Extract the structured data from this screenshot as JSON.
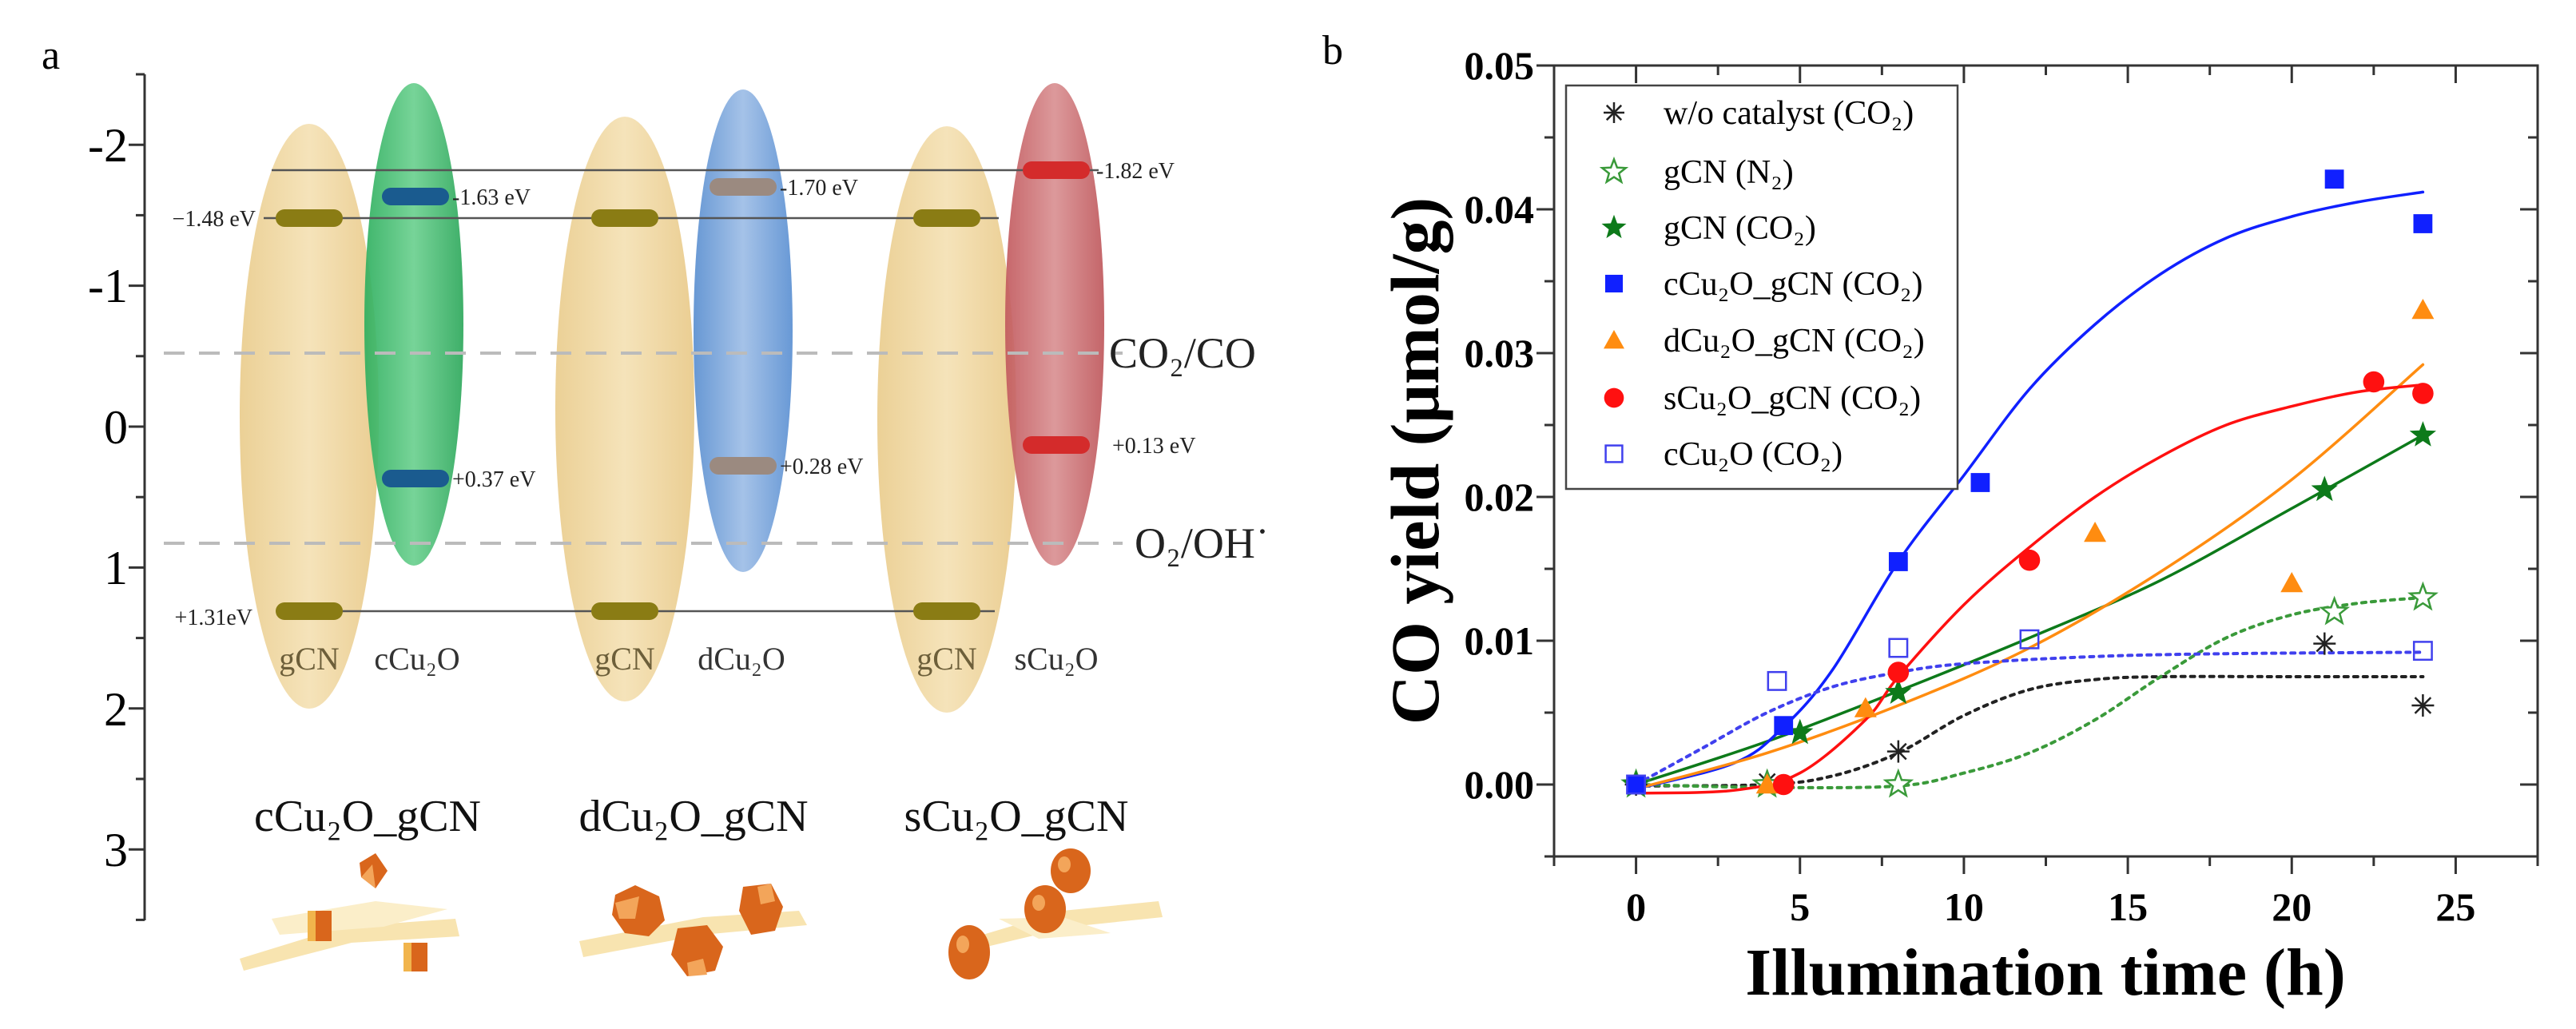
{
  "panel_a": {
    "label": "a",
    "y_ticks": [
      "-2",
      "-1",
      "0",
      "1",
      "2",
      "3"
    ],
    "levels": {
      "gcn_cb": "−1.48 eV",
      "gcn_vb": "+1.31eV",
      "ccu2o_cb": "-1.63 eV",
      "ccu2o_vb": "+0.37 eV",
      "dcu2o_cb": "-1.70 eV",
      "dcu2o_vb": "+0.28 eV",
      "scu2o_cb": "-1.82 eV",
      "scu2o_vb": "+0.13 eV"
    },
    "energies_eV": {
      "gCN": {
        "cb": -1.48,
        "vb": 1.31
      },
      "cCu2O": {
        "cb": -1.63,
        "vb": 0.37
      },
      "dCu2O": {
        "cb": -1.7,
        "vb": 0.28
      },
      "sCu2O": {
        "cb": -1.82,
        "vb": 0.13
      },
      "CO2/CO": -0.52,
      "O2/OH": 0.83
    },
    "redox": {
      "co2_co": "CO₂/CO",
      "o2_oh": "O₂/OH˙"
    },
    "materials": [
      "gCN",
      "cCu₂O",
      "gCN",
      "dCu₂O",
      "gCN",
      "sCu₂O"
    ],
    "composites": [
      "cCu₂O_gCN",
      "dCu₂O_gCN",
      "sCu₂O_gCN"
    ],
    "colors": {
      "gcn": "#efd49a",
      "ccu2o": "#3dba6c",
      "dcu2o": "#6d9fd8",
      "scu2o": "#c9676a"
    }
  },
  "panel_b": {
    "label": "b"
  },
  "chart_data": {
    "type": "scatter",
    "title": "",
    "xlabel": "Illumination time (h)",
    "ylabel": "CO yield (μmol/g)",
    "xlim": [
      -2.5,
      27.5
    ],
    "ylim": [
      -0.005,
      0.05
    ],
    "x_ticks": [
      "0",
      "5",
      "10",
      "15",
      "20",
      "25"
    ],
    "x_tick_values": [
      0,
      5,
      10,
      15,
      20,
      25
    ],
    "y_ticks": [
      "0.00",
      "0.01",
      "0.02",
      "0.03",
      "0.04",
      "0.05"
    ],
    "y_tick_values": [
      0,
      0.01,
      0.02,
      0.03,
      0.04,
      0.05
    ],
    "legend_position": "top-left",
    "series": [
      {
        "name": "w/o catalyst (CO₂)",
        "marker": "asterisk",
        "color": "#222222",
        "line": "dotted",
        "x": [
          0,
          4,
          8,
          21,
          24
        ],
        "y": [
          0,
          0.0002,
          0.0023,
          0.0098,
          0.0055
        ],
        "fit": [
          [
            0,
            -0.0001
          ],
          [
            4,
            0
          ],
          [
            6,
            0.0006
          ],
          [
            8,
            0.0022
          ],
          [
            10,
            0.0048
          ],
          [
            12,
            0.0066
          ],
          [
            14,
            0.0073
          ],
          [
            16,
            0.0075
          ],
          [
            20,
            0.0075
          ],
          [
            24,
            0.0075
          ]
        ]
      },
      {
        "name": "gCN (N₂)",
        "marker": "open-star",
        "color": "#3a9a3a",
        "line": "dotted",
        "x": [
          0,
          4,
          8,
          21.3,
          24
        ],
        "y": [
          0,
          0,
          0,
          0.012,
          0.013
        ],
        "fit": [
          [
            0,
            0
          ],
          [
            4,
            -0.0002
          ],
          [
            8,
            -0.0001
          ],
          [
            10,
            0.0008
          ],
          [
            12,
            0.0022
          ],
          [
            14,
            0.0045
          ],
          [
            16,
            0.0075
          ],
          [
            18,
            0.0102
          ],
          [
            20,
            0.0118
          ],
          [
            22,
            0.0126
          ],
          [
            24,
            0.013
          ]
        ]
      },
      {
        "name": "gCN (CO₂)",
        "marker": "star",
        "color": "#0d7a1a",
        "line": "solid",
        "x": [
          0,
          5,
          8,
          21,
          24
        ],
        "y": [
          0,
          0.0036,
          0.0064,
          0.0205,
          0.0243
        ],
        "fit": [
          [
            0,
            0
          ],
          [
            4,
            0.003
          ],
          [
            8,
            0.0065
          ],
          [
            12,
            0.0102
          ],
          [
            16,
            0.0142
          ],
          [
            20,
            0.0192
          ],
          [
            24,
            0.0243
          ]
        ]
      },
      {
        "name": "cCu₂O_gCN (CO₂)",
        "marker": "square",
        "color": "#1020ff",
        "line": "solid",
        "x": [
          0,
          4.5,
          8,
          10.5,
          21.3,
          24
        ],
        "y": [
          0,
          0.0041,
          0.0155,
          0.021,
          0.0421,
          0.039
        ],
        "fit": [
          [
            0,
            -0.0003
          ],
          [
            3,
            0.0015
          ],
          [
            4.5,
            0.004
          ],
          [
            6,
            0.008
          ],
          [
            8,
            0.0155
          ],
          [
            10,
            0.0215
          ],
          [
            12,
            0.0275
          ],
          [
            14,
            0.032
          ],
          [
            16,
            0.0355
          ],
          [
            18,
            0.038
          ],
          [
            20,
            0.0395
          ],
          [
            22,
            0.0405
          ],
          [
            24,
            0.0412
          ]
        ]
      },
      {
        "name": "dCu₂O_gCN (CO₂)",
        "marker": "triangle",
        "color": "#ff8c10",
        "line": "solid",
        "x": [
          4,
          7,
          14,
          20,
          24
        ],
        "y": [
          0,
          0.0053,
          0.0175,
          0.014,
          0.033
        ],
        "fit": [
          [
            0,
            -0.0003
          ],
          [
            4,
            0.0022
          ],
          [
            8,
            0.0055
          ],
          [
            12,
            0.0095
          ],
          [
            16,
            0.0148
          ],
          [
            20,
            0.0212
          ],
          [
            24,
            0.0292
          ]
        ]
      },
      {
        "name": "sCu₂O_gCN (CO₂)",
        "marker": "circle",
        "color": "#ff1010",
        "line": "solid",
        "x": [
          4.5,
          8,
          12,
          22.5,
          24
        ],
        "y": [
          0,
          0.0078,
          0.0156,
          0.028,
          0.0272
        ],
        "fit": [
          [
            0,
            -0.0006
          ],
          [
            3,
            -0.0004
          ],
          [
            5,
            0.0008
          ],
          [
            7,
            0.0045
          ],
          [
            8,
            0.0075
          ],
          [
            10,
            0.0125
          ],
          [
            12,
            0.0165
          ],
          [
            14,
            0.02
          ],
          [
            16,
            0.0228
          ],
          [
            18,
            0.025
          ],
          [
            20,
            0.0263
          ],
          [
            22,
            0.0273
          ],
          [
            24,
            0.0278
          ]
        ]
      },
      {
        "name": "cCu₂O (CO₂)",
        "marker": "open-square",
        "color": "#4040ee",
        "line": "dotted",
        "x": [
          0,
          4.3,
          8,
          12,
          24
        ],
        "y": [
          0,
          0.0072,
          0.0095,
          0.0101,
          0.0093
        ],
        "fit": [
          [
            0,
            0
          ],
          [
            2,
            0.0025
          ],
          [
            4,
            0.005
          ],
          [
            6,
            0.0068
          ],
          [
            8,
            0.0078
          ],
          [
            10,
            0.0084
          ],
          [
            14,
            0.0089
          ],
          [
            18,
            0.0091
          ],
          [
            24,
            0.0092
          ]
        ]
      }
    ]
  }
}
